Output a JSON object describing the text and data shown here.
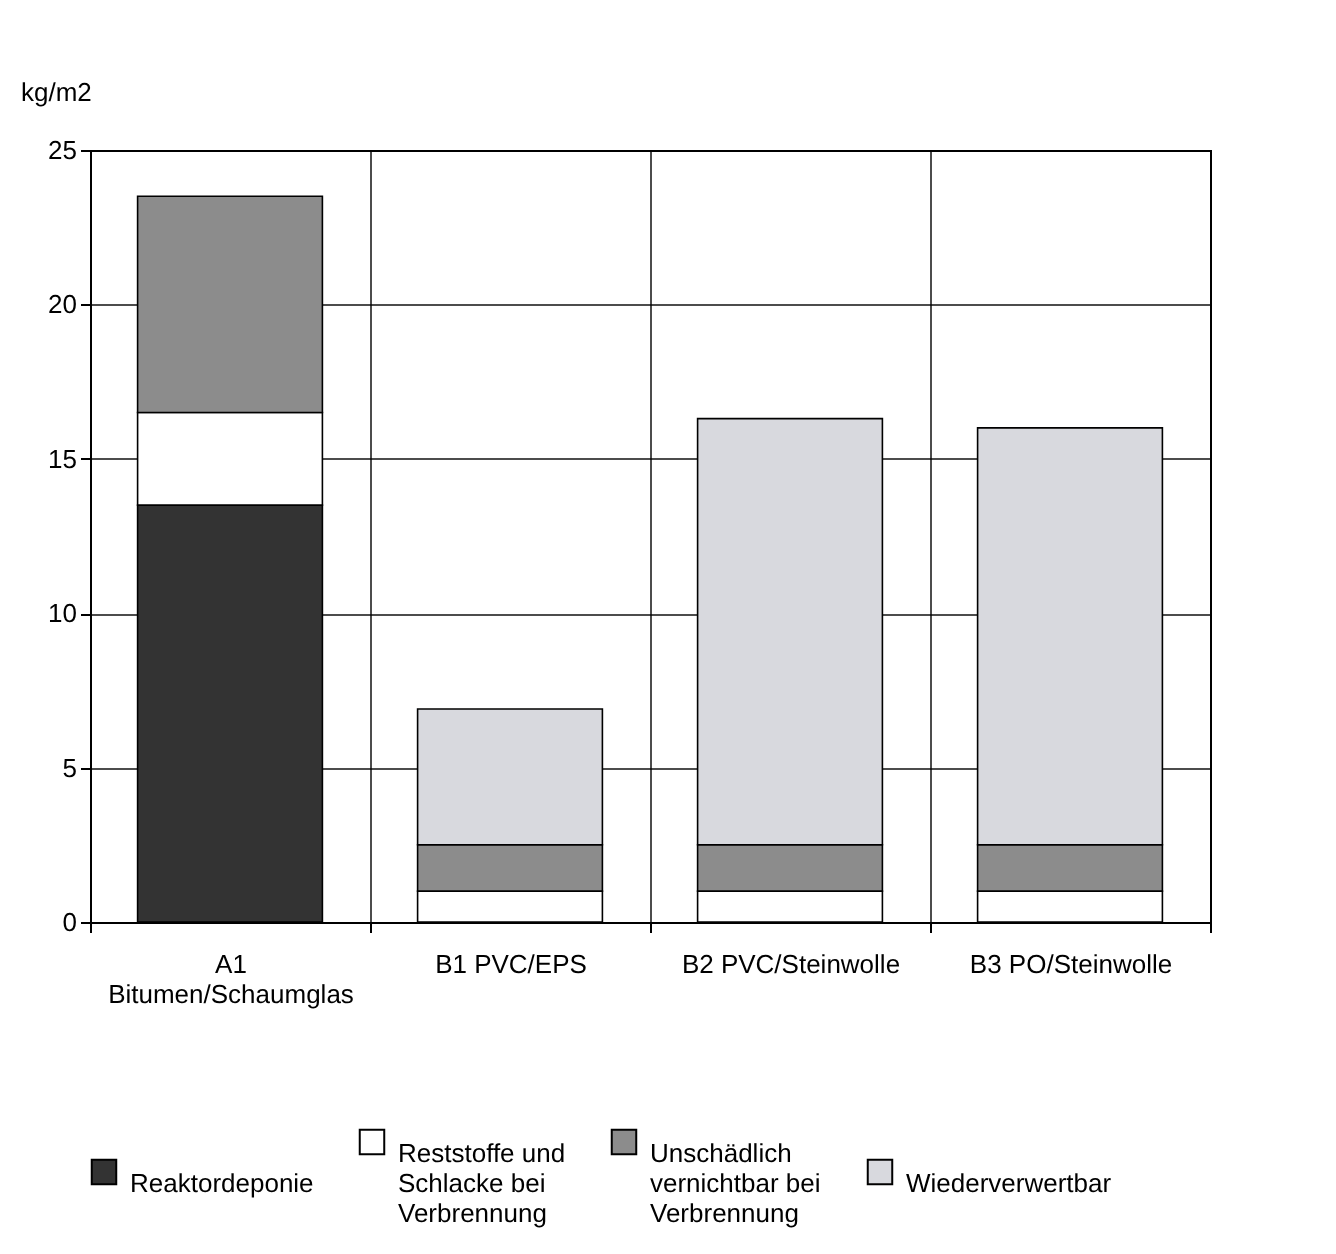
{
  "chart_data": {
    "type": "bar",
    "stacked": true,
    "ylabel": "kg/m2",
    "categories": [
      "A1 Bitumen/Schaumglas",
      "B1  PVC/EPS",
      "B2  PVC/Steinwolle",
      "B3  PO/Steinwolle"
    ],
    "series": [
      {
        "name": "Reaktordeponie",
        "color": "#333333",
        "values": [
          13.5,
          null,
          null,
          null
        ]
      },
      {
        "name": "Reststoffe und Schlacke bei Verbrennung",
        "color": "#ffffff",
        "values": [
          3.0,
          1.0,
          1.0,
          1.0
        ]
      },
      {
        "name": "Unschädlich vernichtbar bei Verbrennung",
        "color": "#8c8c8c",
        "values": [
          7.0,
          1.5,
          1.5,
          1.5
        ]
      },
      {
        "name": "Wiederverwertbar",
        "color": "#d8d9de",
        "values": [
          null,
          4.4,
          13.8,
          13.5
        ]
      }
    ],
    "ylim": [
      0,
      25
    ],
    "yticks": [
      0,
      5,
      10,
      15,
      20,
      25
    ],
    "grid": true,
    "legend": "bottom"
  }
}
